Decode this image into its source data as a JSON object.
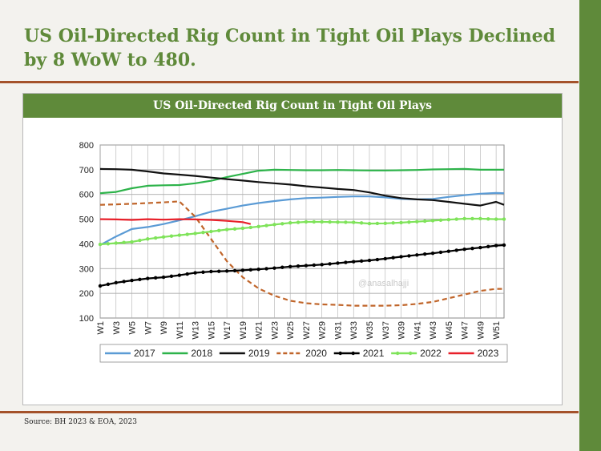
{
  "slide": {
    "title": "US Oil-Directed Rig Count in Tight Oil Plays Declined by 8 WoW to 480.",
    "source": "Source: BH 2023 & EOA, 2023",
    "watermark": "@anasalhajji"
  },
  "colors": {
    "green_theme": "#5f8a3a",
    "rule": "#a4522a",
    "s2017": "#5b9bd5",
    "s2018": "#2db34a",
    "s2019": "#111111",
    "s2020": "#c0652a",
    "s2021": "#000000",
    "s2022": "#7fe35a",
    "s2023": "#e8202a"
  },
  "chart_data": {
    "type": "line",
    "title": "US Oil-Directed Rig Count in Tight Oil Plays",
    "xlabel": "",
    "ylabel": "",
    "ylim": [
      100,
      800
    ],
    "yticks": [
      100,
      200,
      300,
      400,
      500,
      600,
      700,
      800
    ],
    "x_tick_labels": [
      "W1",
      "W3",
      "W5",
      "W7",
      "W9",
      "W11",
      "W13",
      "W15",
      "W17",
      "W19",
      "W21",
      "W23",
      "W25",
      "W27",
      "W29",
      "W31",
      "W33",
      "W35",
      "W37",
      "W39",
      "W41",
      "W43",
      "W45",
      "W47",
      "W49",
      "W51"
    ],
    "weeks": 52,
    "grid": true,
    "legend_position": "bottom",
    "series": [
      {
        "name": "2017",
        "color": "#5b9bd5",
        "style": "solid",
        "points": [
          [
            1,
            395
          ],
          [
            3,
            430
          ],
          [
            5,
            460
          ],
          [
            7,
            468
          ],
          [
            9,
            480
          ],
          [
            11,
            495
          ],
          [
            13,
            512
          ],
          [
            15,
            530
          ],
          [
            17,
            542
          ],
          [
            19,
            555
          ],
          [
            21,
            565
          ],
          [
            23,
            573
          ],
          [
            25,
            580
          ],
          [
            27,
            585
          ],
          [
            29,
            587
          ],
          [
            31,
            590
          ],
          [
            33,
            592
          ],
          [
            35,
            592
          ],
          [
            37,
            588
          ],
          [
            39,
            582
          ],
          [
            41,
            580
          ],
          [
            43,
            582
          ],
          [
            45,
            590
          ],
          [
            47,
            597
          ],
          [
            49,
            603
          ],
          [
            51,
            606
          ],
          [
            52,
            605
          ]
        ]
      },
      {
        "name": "2018",
        "color": "#2db34a",
        "style": "solid",
        "points": [
          [
            1,
            605
          ],
          [
            3,
            610
          ],
          [
            5,
            625
          ],
          [
            7,
            635
          ],
          [
            9,
            637
          ],
          [
            11,
            638
          ],
          [
            13,
            645
          ],
          [
            15,
            655
          ],
          [
            17,
            670
          ],
          [
            19,
            683
          ],
          [
            21,
            696
          ],
          [
            23,
            700
          ],
          [
            25,
            699
          ],
          [
            27,
            698
          ],
          [
            29,
            698
          ],
          [
            31,
            699
          ],
          [
            33,
            698
          ],
          [
            35,
            697
          ],
          [
            37,
            697
          ],
          [
            39,
            698
          ],
          [
            41,
            699
          ],
          [
            43,
            701
          ],
          [
            45,
            702
          ],
          [
            47,
            703
          ],
          [
            49,
            700
          ],
          [
            51,
            700
          ],
          [
            52,
            700
          ]
        ]
      },
      {
        "name": "2019",
        "color": "#111111",
        "style": "solid",
        "points": [
          [
            1,
            703
          ],
          [
            3,
            702
          ],
          [
            5,
            700
          ],
          [
            7,
            693
          ],
          [
            9,
            685
          ],
          [
            11,
            680
          ],
          [
            13,
            675
          ],
          [
            15,
            668
          ],
          [
            17,
            662
          ],
          [
            19,
            656
          ],
          [
            21,
            650
          ],
          [
            23,
            645
          ],
          [
            25,
            640
          ],
          [
            27,
            633
          ],
          [
            29,
            628
          ],
          [
            31,
            622
          ],
          [
            33,
            618
          ],
          [
            35,
            608
          ],
          [
            37,
            595
          ],
          [
            39,
            585
          ],
          [
            41,
            580
          ],
          [
            43,
            577
          ],
          [
            45,
            570
          ],
          [
            47,
            562
          ],
          [
            49,
            555
          ],
          [
            51,
            570
          ],
          [
            52,
            558
          ]
        ]
      },
      {
        "name": "2020",
        "color": "#c0652a",
        "style": "dashed",
        "points": [
          [
            1,
            558
          ],
          [
            3,
            560
          ],
          [
            5,
            562
          ],
          [
            7,
            565
          ],
          [
            9,
            568
          ],
          [
            11,
            572
          ],
          [
            13,
            510
          ],
          [
            15,
            420
          ],
          [
            17,
            330
          ],
          [
            19,
            265
          ],
          [
            21,
            220
          ],
          [
            23,
            190
          ],
          [
            25,
            170
          ],
          [
            27,
            160
          ],
          [
            29,
            155
          ],
          [
            31,
            153
          ],
          [
            33,
            150
          ],
          [
            35,
            150
          ],
          [
            37,
            150
          ],
          [
            39,
            152
          ],
          [
            41,
            157
          ],
          [
            43,
            165
          ],
          [
            45,
            180
          ],
          [
            47,
            195
          ],
          [
            49,
            210
          ],
          [
            51,
            218
          ],
          [
            52,
            218
          ]
        ]
      },
      {
        "name": "2021",
        "color": "#000000",
        "style": "solid-marker",
        "points": [
          [
            1,
            230
          ],
          [
            3,
            243
          ],
          [
            5,
            252
          ],
          [
            7,
            260
          ],
          [
            9,
            265
          ],
          [
            11,
            273
          ],
          [
            13,
            283
          ],
          [
            15,
            288
          ],
          [
            17,
            290
          ],
          [
            19,
            293
          ],
          [
            21,
            297
          ],
          [
            23,
            302
          ],
          [
            25,
            308
          ],
          [
            27,
            312
          ],
          [
            29,
            316
          ],
          [
            31,
            322
          ],
          [
            33,
            328
          ],
          [
            35,
            333
          ],
          [
            37,
            340
          ],
          [
            39,
            348
          ],
          [
            41,
            355
          ],
          [
            43,
            362
          ],
          [
            45,
            370
          ],
          [
            47,
            378
          ],
          [
            49,
            385
          ],
          [
            51,
            393
          ],
          [
            52,
            395
          ]
        ]
      },
      {
        "name": "2022",
        "color": "#7fe35a",
        "style": "solid-marker",
        "points": [
          [
            1,
            398
          ],
          [
            3,
            403
          ],
          [
            5,
            408
          ],
          [
            7,
            420
          ],
          [
            9,
            428
          ],
          [
            11,
            435
          ],
          [
            13,
            442
          ],
          [
            15,
            450
          ],
          [
            17,
            458
          ],
          [
            19,
            463
          ],
          [
            21,
            470
          ],
          [
            23,
            478
          ],
          [
            25,
            485
          ],
          [
            27,
            489
          ],
          [
            29,
            489
          ],
          [
            31,
            488
          ],
          [
            33,
            487
          ],
          [
            35,
            482
          ],
          [
            37,
            483
          ],
          [
            39,
            486
          ],
          [
            41,
            490
          ],
          [
            43,
            494
          ],
          [
            45,
            498
          ],
          [
            47,
            502
          ],
          [
            49,
            502
          ],
          [
            51,
            500
          ],
          [
            52,
            500
          ]
        ]
      },
      {
        "name": "2023",
        "color": "#e8202a",
        "style": "solid",
        "points": [
          [
            1,
            500
          ],
          [
            3,
            499
          ],
          [
            5,
            497
          ],
          [
            7,
            500
          ],
          [
            9,
            498
          ],
          [
            11,
            500
          ],
          [
            13,
            499
          ],
          [
            15,
            497
          ],
          [
            17,
            493
          ],
          [
            19,
            488
          ],
          [
            20,
            480
          ]
        ]
      }
    ]
  }
}
